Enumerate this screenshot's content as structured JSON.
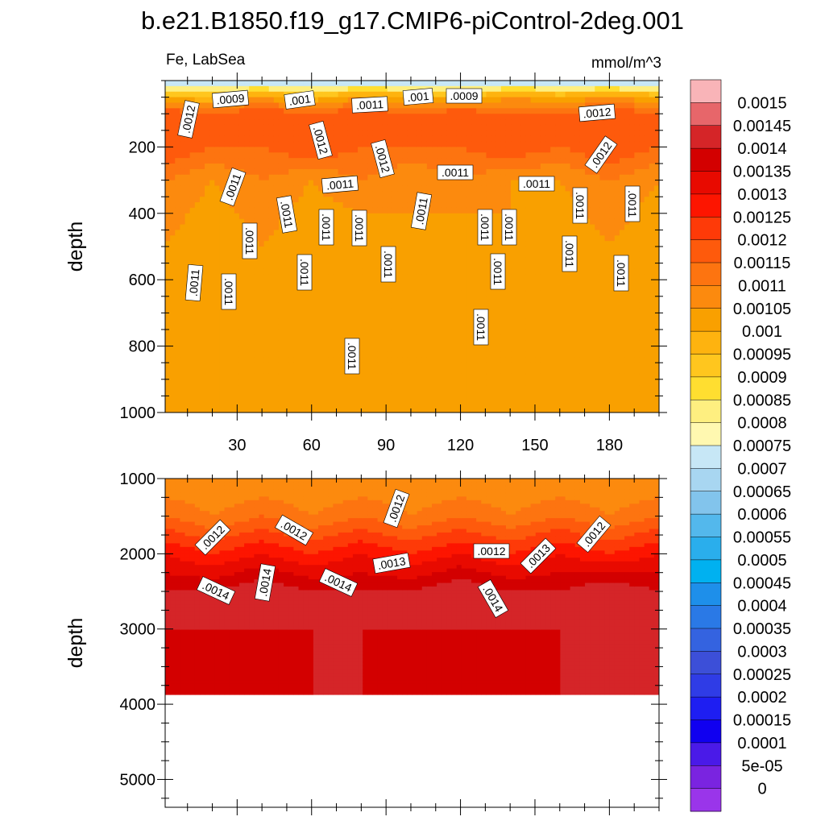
{
  "title": "b.e21.B1850.f19_g17.CMIP6-piControl-2deg.001",
  "variable_label": "Fe, LabSea",
  "units_label": "mmol/m^3",
  "chart_data": [
    {
      "type": "heatmap",
      "panel": "upper",
      "ylabel": "depth",
      "xlabel": "",
      "xlim": [
        1,
        200
      ],
      "ylim": [
        1000,
        0
      ],
      "xticks": [
        30,
        60,
        90,
        120,
        150,
        180
      ],
      "yticks": [
        200,
        400,
        600,
        800,
        1000
      ],
      "x_profile": [
        1,
        20,
        40,
        60,
        80,
        100,
        120,
        140,
        160,
        180,
        200
      ],
      "depth_profile": [
        0,
        50,
        100,
        200,
        300,
        500,
        700,
        1000
      ],
      "values": [
        [
          0.0007,
          0.00075,
          0.00072,
          0.0007,
          0.00074,
          0.00071,
          0.0007,
          0.00073,
          0.00072,
          0.00071,
          0.0007
        ],
        [
          0.00105,
          0.001,
          0.0011,
          0.001,
          0.0011,
          0.00105,
          0.001,
          0.0011,
          0.00105,
          0.0011,
          0.00105
        ],
        [
          0.00125,
          0.0012,
          0.00125,
          0.0012,
          0.00125,
          0.0012,
          0.00125,
          0.0012,
          0.0012,
          0.00125,
          0.0012
        ],
        [
          0.00125,
          0.0012,
          0.0012,
          0.00125,
          0.0012,
          0.0012,
          0.0012,
          0.00125,
          0.0012,
          0.00125,
          0.0012
        ],
        [
          0.00115,
          0.0011,
          0.00115,
          0.0011,
          0.00115,
          0.0011,
          0.00115,
          0.0011,
          0.0011,
          0.00115,
          0.0011
        ],
        [
          0.0011,
          0.00105,
          0.0011,
          0.00105,
          0.00105,
          0.0011,
          0.00105,
          0.0011,
          0.00105,
          0.0011,
          0.00105
        ],
        [
          0.00105,
          0.00105,
          0.00105,
          0.00105,
          0.00105,
          0.00105,
          0.00105,
          0.00105,
          0.00105,
          0.00105,
          0.00105
        ],
        [
          0.00105,
          0.00105,
          0.00105,
          0.00105,
          0.00105,
          0.00105,
          0.00105,
          0.00105,
          0.00105,
          0.00105,
          0.00105
        ]
      ],
      "contour_labels": [
        ".0012",
        ".0009",
        ".001",
        ".0011",
        ".001",
        ".0009",
        ".0012",
        ".0012",
        ".0012",
        ".0012",
        ".0011",
        ".0011",
        ".0011",
        ".0011",
        ".0011",
        ".0011",
        ".0011",
        ".0011",
        ".0011",
        ".0011",
        ".0011",
        ".0011",
        ".0011",
        ".0011",
        ".0011",
        ".0011",
        ".0011",
        ".0011",
        ".0011",
        ".0011",
        ".0011",
        ".0011"
      ]
    },
    {
      "type": "heatmap",
      "panel": "lower",
      "ylabel": "depth",
      "xlabel": "",
      "xlim": [
        1,
        200
      ],
      "ylim": [
        5370,
        1000
      ],
      "xticks": [
        30,
        60,
        90,
        120,
        150,
        180
      ],
      "yticks": [
        1000,
        2000,
        3000,
        4000,
        5000
      ],
      "data_bottom_depth": 3870,
      "x_profile": [
        1,
        20,
        40,
        60,
        80,
        100,
        120,
        140,
        160,
        180,
        200
      ],
      "depth_profile": [
        1000,
        1500,
        2000,
        2500,
        3000,
        3870
      ],
      "values": [
        [
          0.0011,
          0.0011,
          0.0011,
          0.0011,
          0.0011,
          0.0011,
          0.0011,
          0.0011,
          0.0011,
          0.0011,
          0.0011
        ],
        [
          0.0012,
          0.00115,
          0.0012,
          0.00115,
          0.0012,
          0.00115,
          0.0012,
          0.00115,
          0.0012,
          0.00115,
          0.0012
        ],
        [
          0.00135,
          0.0013,
          0.00135,
          0.0013,
          0.00135,
          0.0013,
          0.00135,
          0.0013,
          0.00135,
          0.0013,
          0.00135
        ],
        [
          0.00145,
          0.00145,
          0.0015,
          0.00145,
          0.00145,
          0.00145,
          0.0015,
          0.00145,
          0.00145,
          0.0015,
          0.00145
        ],
        [
          0.00145,
          0.00145,
          0.00145,
          0.00145,
          0.00145,
          0.00145,
          0.00145,
          0.00145,
          0.00145,
          0.00145,
          0.00145
        ],
        [
          0.0014,
          0.00145,
          0.0014,
          0.00145,
          0.00145,
          0.0014,
          0.00145,
          0.0014,
          0.00145,
          0.00145,
          0.00145
        ]
      ],
      "contour_labels": [
        ".0012",
        ".0012",
        ".0012",
        ".0012",
        ".0012",
        ".0013",
        ".0013",
        ".0014",
        ".0014",
        ".0014",
        ".0014"
      ]
    }
  ],
  "colorbar": {
    "labels": [
      "0.0015",
      "0.00145",
      "0.0014",
      "0.00135",
      "0.0013",
      "0.00125",
      "0.0012",
      "0.00115",
      "0.0011",
      "0.00105",
      "0.001",
      "0.00095",
      "0.0009",
      "0.00085",
      "0.0008",
      "0.00075",
      "0.0007",
      "0.00065",
      "0.0006",
      "0.00055",
      "0.0005",
      "0.00045",
      "0.0004",
      "0.00035",
      "0.0003",
      "0.00025",
      "0.0002",
      "0.00015",
      "0.0001",
      "5e-05",
      "0"
    ],
    "colors": [
      "#F9B4B8",
      "#E7666A",
      "#D52528",
      "#D30000",
      "#E80A00",
      "#FD1500",
      "#FE3A08",
      "#FE5A0C",
      "#FD7410",
      "#FC8A0E",
      "#F9A000",
      "#FEB30F",
      "#FFC61E",
      "#FFDE30",
      "#FEEF80",
      "#FFF8B0",
      "#C7E7F6",
      "#A8D6F1",
      "#82C4EC",
      "#53B8EC",
      "#2AAEEC",
      "#00B1F0",
      "#1E8FEA",
      "#2A79E6",
      "#3463E0",
      "#3C4FD8",
      "#2F3CE6",
      "#1E1EF2",
      "#1000F0",
      "#4A1AE8",
      "#7A24E0",
      "#9A35EA"
    ]
  }
}
